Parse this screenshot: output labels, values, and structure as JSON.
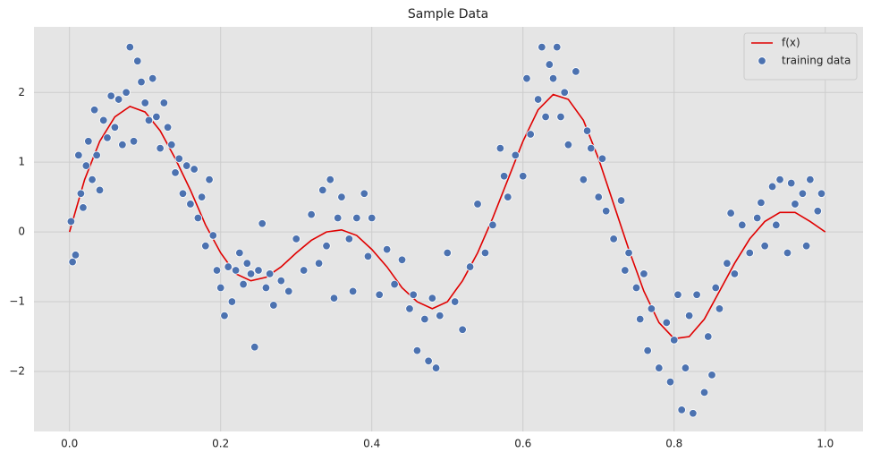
{
  "chart_data": {
    "type": "line_scatter",
    "title": "Sample Data",
    "xlim": [
      -0.047,
      1.05
    ],
    "ylim": [
      -2.86,
      2.94
    ],
    "xticks": [
      {
        "value": 0,
        "label": "0.0"
      },
      {
        "value": 0.2,
        "label": "0.2"
      },
      {
        "value": 0.4,
        "label": "0.4"
      },
      {
        "value": 0.6,
        "label": "0.6"
      },
      {
        "value": 0.8,
        "label": "0.8"
      },
      {
        "value": 1,
        "label": "1.0"
      }
    ],
    "yticks": [
      {
        "value": -2,
        "label": "−2"
      },
      {
        "value": -1,
        "label": "−1"
      },
      0,
      1,
      2
    ],
    "grid": true,
    "legend": "upper right",
    "background": "#e5e5e5",
    "series": [
      {
        "name": "f(x)",
        "kind": "line",
        "color": "#e00000",
        "x": [
          0,
          0.02,
          0.04,
          0.06,
          0.08,
          0.1,
          0.12,
          0.14,
          0.16,
          0.18,
          0.2,
          0.22,
          0.24,
          0.26,
          0.28,
          0.3,
          0.32,
          0.34,
          0.36,
          0.38,
          0.4,
          0.42,
          0.44,
          0.46,
          0.48,
          0.5,
          0.52,
          0.54,
          0.56,
          0.58,
          0.6,
          0.62,
          0.64,
          0.66,
          0.68,
          0.7,
          0.72,
          0.74,
          0.76,
          0.78,
          0.8,
          0.82,
          0.84,
          0.86,
          0.88,
          0.9,
          0.92,
          0.94,
          0.96,
          0.98,
          1
        ],
        "values": [
          0,
          0.75,
          1.3,
          1.65,
          1.8,
          1.72,
          1.45,
          1.05,
          0.6,
          0.1,
          -0.3,
          -0.6,
          -0.7,
          -0.65,
          -0.5,
          -0.3,
          -0.12,
          0,
          0.03,
          -0.05,
          -0.25,
          -0.5,
          -0.8,
          -1,
          -1.1,
          -1,
          -0.7,
          -0.3,
          0.2,
          0.75,
          1.3,
          1.75,
          1.97,
          1.9,
          1.6,
          1.05,
          0.4,
          -0.25,
          -0.85,
          -1.3,
          -1.53,
          -1.5,
          -1.25,
          -0.85,
          -0.45,
          -0.1,
          0.15,
          0.28,
          0.28,
          0.15,
          0
        ]
      },
      {
        "name": "training data",
        "kind": "scatter",
        "color": "#4c72b0",
        "x": [
          0.002,
          0.004,
          0.008,
          0.012,
          0.015,
          0.018,
          0.022,
          0.025,
          0.03,
          0.033,
          0.036,
          0.04,
          0.045,
          0.05,
          0.055,
          0.06,
          0.065,
          0.07,
          0.075,
          0.08,
          0.085,
          0.09,
          0.095,
          0.1,
          0.105,
          0.11,
          0.115,
          0.12,
          0.125,
          0.13,
          0.135,
          0.14,
          0.145,
          0.15,
          0.155,
          0.16,
          0.165,
          0.17,
          0.175,
          0.18,
          0.185,
          0.19,
          0.195,
          0.2,
          0.205,
          0.21,
          0.215,
          0.22,
          0.225,
          0.23,
          0.235,
          0.24,
          0.245,
          0.25,
          0.255,
          0.26,
          0.265,
          0.27,
          0.28,
          0.29,
          0.3,
          0.31,
          0.32,
          0.33,
          0.335,
          0.34,
          0.345,
          0.35,
          0.355,
          0.36,
          0.37,
          0.375,
          0.38,
          0.39,
          0.395,
          0.4,
          0.41,
          0.42,
          0.43,
          0.44,
          0.45,
          0.455,
          0.46,
          0.47,
          0.475,
          0.48,
          0.485,
          0.49,
          0.5,
          0.51,
          0.52,
          0.53,
          0.54,
          0.55,
          0.56,
          0.57,
          0.575,
          0.58,
          0.59,
          0.6,
          0.605,
          0.61,
          0.62,
          0.625,
          0.63,
          0.635,
          0.64,
          0.645,
          0.65,
          0.655,
          0.66,
          0.67,
          0.68,
          0.685,
          0.69,
          0.7,
          0.705,
          0.71,
          0.72,
          0.73,
          0.735,
          0.74,
          0.75,
          0.755,
          0.76,
          0.765,
          0.77,
          0.78,
          0.79,
          0.795,
          0.8,
          0.805,
          0.81,
          0.815,
          0.82,
          0.825,
          0.83,
          0.84,
          0.845,
          0.85,
          0.855,
          0.86,
          0.87,
          0.875,
          0.88,
          0.89,
          0.9,
          0.91,
          0.915,
          0.92,
          0.93,
          0.935,
          0.94,
          0.95,
          0.955,
          0.96,
          0.97,
          0.975,
          0.98,
          0.99,
          0.995
        ],
        "values": [
          0.15,
          -0.43,
          -0.33,
          1.1,
          0.55,
          0.35,
          0.95,
          1.3,
          0.75,
          1.75,
          1.1,
          0.6,
          1.6,
          1.35,
          1.95,
          1.5,
          1.9,
          1.25,
          2,
          2.65,
          1.3,
          2.45,
          2.15,
          1.85,
          1.6,
          2.2,
          1.65,
          1.2,
          1.85,
          1.5,
          1.25,
          0.85,
          1.05,
          0.55,
          0.95,
          0.4,
          0.9,
          0.2,
          0.5,
          -0.2,
          0.75,
          -0.05,
          -0.55,
          -0.8,
          -1.2,
          -0.5,
          -1,
          -0.55,
          -0.3,
          -0.75,
          -0.45,
          -0.6,
          -1.65,
          -0.55,
          0.12,
          -0.8,
          -0.6,
          -1.05,
          -0.7,
          -0.85,
          -0.1,
          -0.55,
          0.25,
          -0.45,
          0.6,
          -0.2,
          0.75,
          -0.95,
          0.2,
          0.5,
          -0.1,
          -0.85,
          0.2,
          0.55,
          -0.35,
          0.2,
          -0.9,
          -0.25,
          -0.75,
          -0.4,
          -1.1,
          -0.9,
          -1.7,
          -1.25,
          -1.85,
          -0.95,
          -1.95,
          -1.2,
          -0.3,
          -1,
          -1.4,
          -0.5,
          0.4,
          -0.3,
          0.1,
          1.2,
          0.8,
          0.5,
          1.1,
          0.8,
          2.2,
          1.4,
          1.9,
          2.65,
          1.65,
          2.4,
          2.2,
          2.65,
          1.65,
          2,
          1.25,
          2.3,
          0.75,
          1.45,
          1.2,
          0.5,
          1.05,
          0.3,
          -0.1,
          0.45,
          -0.55,
          -0.3,
          -0.8,
          -1.25,
          -0.6,
          -1.7,
          -1.1,
          -1.95,
          -1.3,
          -2.15,
          -1.55,
          -0.9,
          -2.55,
          -1.95,
          -1.2,
          -2.6,
          -0.9,
          -2.3,
          -1.5,
          -2.05,
          -0.8,
          -1.1,
          -0.45,
          0.27,
          -0.6,
          0.1,
          -0.3,
          0.2,
          0.42,
          -0.2,
          0.65,
          0.1,
          0.75,
          -0.3,
          0.7,
          0.4,
          0.55,
          -0.2,
          0.75,
          0.3,
          0.55
        ]
      }
    ]
  }
}
